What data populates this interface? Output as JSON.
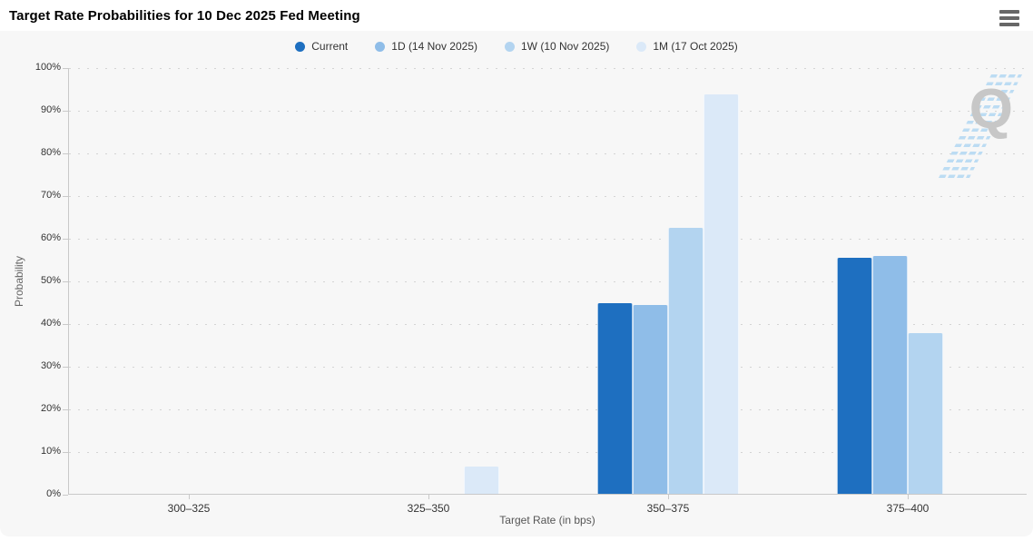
{
  "header": {
    "title": "Target Rate Probabilities for 10 Dec 2025 Fed Meeting",
    "menu_icon": "hamburger-icon"
  },
  "watermark": {
    "letter": "Q"
  },
  "chart_data": {
    "type": "bar",
    "title": "Target Rate Probabilities for 10 Dec 2025 Fed Meeting",
    "xlabel": "Target Rate (in bps)",
    "ylabel": "Probability",
    "categories": [
      "300–325",
      "325–350",
      "350–375",
      "375–400"
    ],
    "series": [
      {
        "name": "Current",
        "color": "#1e6fc0",
        "values": [
          0,
          0,
          44.7,
          55.3
        ]
      },
      {
        "name": "1D (14 Nov 2025)",
        "color": "#8fbde8",
        "values": [
          0,
          0,
          44.3,
          55.7
        ]
      },
      {
        "name": "1W (10 Nov 2025)",
        "color": "#b3d4f0",
        "values": [
          0,
          0,
          62.3,
          37.7
        ]
      },
      {
        "name": "1M (17 Oct 2025)",
        "color": "#dbe9f8",
        "values": [
          0,
          6.3,
          93.7,
          0
        ]
      }
    ],
    "ylim": [
      0,
      100
    ],
    "ytick_step": 10,
    "yticklabels": [
      "0%",
      "10%",
      "20%",
      "30%",
      "40%",
      "50%",
      "60%",
      "70%",
      "80%",
      "90%",
      "100%"
    ],
    "grid": "horizontal-dotted",
    "legend_position": "top-center",
    "background": "#f7f7f7"
  }
}
